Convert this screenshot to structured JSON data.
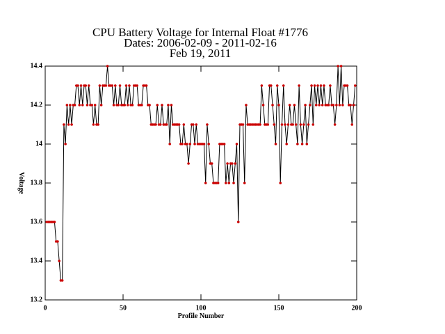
{
  "chart_data": {
    "type": "line",
    "title": [
      "CPU Battery Voltage for Internal Float #1776",
      "Dates:  2006-02-09 -  2011-02-16",
      "Feb 19, 2011"
    ],
    "x_label": "Profile Number",
    "y_label": "Voltage",
    "line_color": "#000000",
    "marker_color": "#cc0000",
    "xlim": [
      0,
      200
    ],
    "xticks": [
      0,
      50,
      100,
      150,
      200
    ],
    "ylim": [
      13.2,
      14.4
    ],
    "yticks": [
      13.2,
      13.4,
      13.6,
      13.8,
      14.0,
      14.2,
      14.4
    ],
    "x": [
      1,
      2,
      3,
      4,
      5,
      6,
      7,
      8,
      9,
      10,
      11,
      12,
      13,
      14,
      15,
      16,
      17,
      18,
      19,
      20,
      21,
      22,
      23,
      24,
      25,
      26,
      27,
      28,
      29,
      30,
      31,
      32,
      33,
      34,
      35,
      36,
      37,
      38,
      39,
      40,
      41,
      42,
      43,
      44,
      45,
      46,
      47,
      48,
      49,
      50,
      51,
      52,
      53,
      54,
      55,
      56,
      57,
      58,
      59,
      60,
      61,
      62,
      63,
      64,
      65,
      66,
      67,
      68,
      69,
      70,
      71,
      72,
      73,
      74,
      75,
      76,
      77,
      78,
      79,
      80,
      81,
      82,
      83,
      84,
      85,
      86,
      87,
      88,
      89,
      90,
      91,
      92,
      93,
      94,
      95,
      96,
      97,
      98,
      99,
      100,
      101,
      102,
      103,
      104,
      105,
      106,
      107,
      108,
      109,
      110,
      111,
      112,
      113,
      114,
      115,
      116,
      117,
      118,
      119,
      120,
      121,
      122,
      123,
      124,
      125,
      126,
      127,
      128,
      129,
      130,
      131,
      132,
      133,
      134,
      135,
      136,
      137,
      138,
      139,
      140,
      141,
      142,
      143,
      144,
      145,
      146,
      147,
      148,
      149,
      150,
      151,
      152,
      153,
      154,
      155,
      156,
      157,
      158,
      159,
      160,
      161,
      162,
      163,
      164,
      165,
      166,
      167,
      168,
      169,
      170,
      171,
      172,
      173,
      174,
      175,
      176,
      177,
      178,
      179,
      180,
      181,
      182,
      183,
      184,
      185,
      186,
      187,
      188,
      189,
      190,
      191,
      192,
      193,
      194,
      195,
      196,
      197,
      198,
      199
    ],
    "values": [
      13.6,
      13.6,
      13.6,
      13.6,
      13.6,
      13.6,
      13.5,
      13.5,
      13.4,
      13.3,
      13.3,
      14.1,
      14.0,
      14.2,
      14.1,
      14.2,
      14.1,
      14.2,
      14.2,
      14.3,
      14.3,
      14.2,
      14.3,
      14.2,
      14.3,
      14.3,
      14.2,
      14.3,
      14.2,
      14.2,
      14.1,
      14.2,
      14.1,
      14.1,
      14.3,
      14.2,
      14.3,
      14.3,
      14.3,
      14.4,
      14.3,
      14.3,
      14.3,
      14.2,
      14.3,
      14.2,
      14.2,
      14.3,
      14.2,
      14.2,
      14.2,
      14.3,
      14.2,
      14.3,
      14.2,
      14.2,
      14.3,
      14.3,
      14.3,
      14.2,
      14.2,
      14.2,
      14.3,
      14.3,
      14.3,
      14.2,
      14.2,
      14.1,
      14.1,
      14.1,
      14.1,
      14.2,
      14.1,
      14.1,
      14.2,
      14.1,
      14.1,
      14.1,
      14.2,
      14.0,
      14.2,
      14.1,
      14.1,
      14.1,
      14.1,
      14.1,
      14.0,
      14.0,
      14.1,
      14.0,
      14.0,
      13.9,
      14.0,
      14.1,
      14.1,
      14.0,
      14.1,
      14.0,
      14.0,
      14.0,
      14.0,
      14.0,
      13.8,
      14.1,
      14.0,
      13.9,
      13.9,
      13.8,
      13.8,
      13.8,
      13.8,
      14.0,
      14.0,
      14.0,
      14.0,
      13.8,
      13.9,
      13.8,
      13.9,
      13.9,
      13.8,
      13.9,
      14.0,
      13.6,
      14.1,
      14.1,
      14.1,
      13.8,
      14.2,
      14.1,
      14.1,
      14.1,
      14.1,
      14.1,
      14.1,
      14.1,
      14.1,
      14.1,
      14.3,
      14.2,
      14.1,
      14.1,
      14.1,
      14.3,
      14.3,
      14.2,
      14.1,
      14.0,
      14.3,
      14.2,
      13.8,
      14.1,
      14.3,
      14.1,
      14.0,
      14.1,
      14.2,
      14.1,
      14.1,
      14.2,
      14.1,
      14.0,
      14.3,
      14.1,
      14.0,
      14.1,
      14.2,
      14.0,
      14.1,
      14.2,
      14.3,
      14.1,
      14.3,
      14.2,
      14.3,
      14.2,
      14.3,
      14.2,
      14.3,
      14.2,
      14.2,
      14.2,
      14.3,
      14.2,
      14.2,
      14.1,
      14.2,
      14.4,
      14.2,
      14.4,
      14.2,
      14.3,
      14.3,
      14.3,
      14.2,
      14.2,
      14.1,
      14.2,
      14.3
    ]
  }
}
